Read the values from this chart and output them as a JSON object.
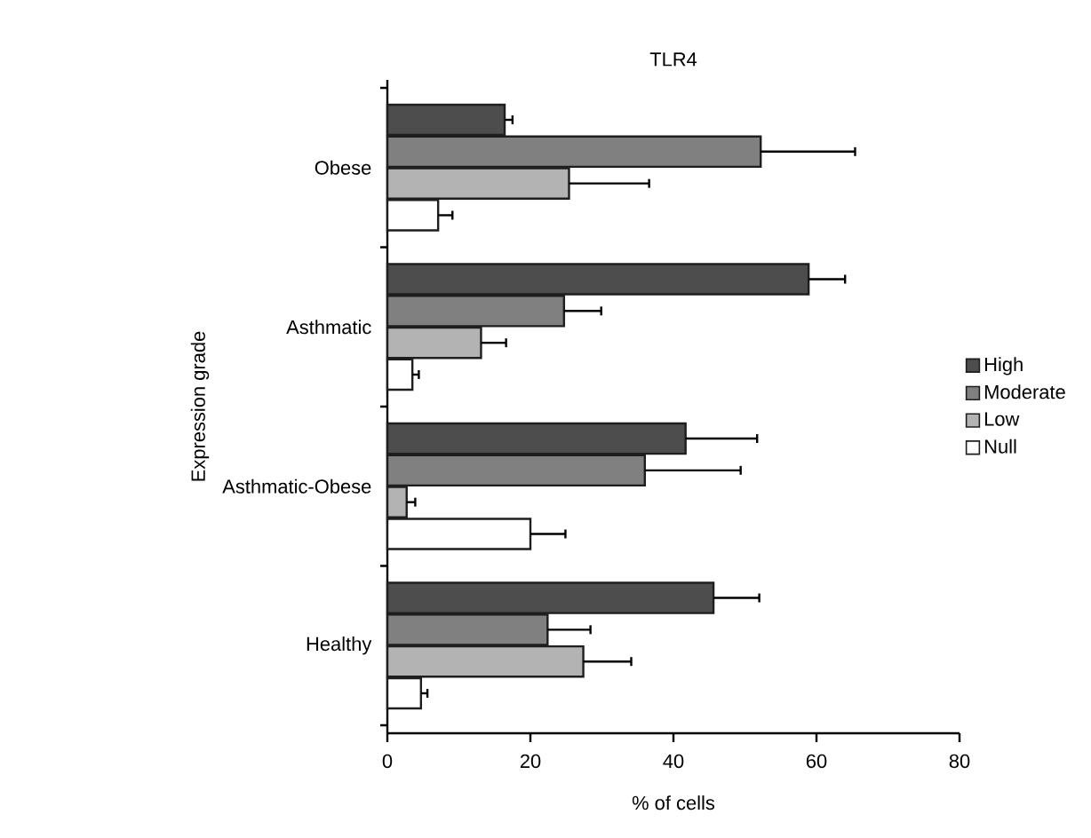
{
  "chart_data": {
    "type": "bar",
    "orientation": "horizontal",
    "title": "TLR4",
    "xlabel": "% of cells",
    "ylabel": "Expression grade",
    "categories": [
      "Obese",
      "Asthmatic",
      "Asthmatic-Obese",
      "Healthy"
    ],
    "series": [
      {
        "name": "High",
        "color": "#4d4d4d",
        "values": [
          16.4,
          58.9,
          41.7,
          45.6
        ],
        "errors": [
          [
            16.4,
            17.5
          ],
          [
            58.9,
            64.0
          ],
          [
            41.7,
            51.7
          ],
          [
            45.6,
            52.0
          ]
        ]
      },
      {
        "name": "Moderate",
        "color": "#808080",
        "values": [
          52.2,
          24.7,
          36.0,
          22.4
        ],
        "errors": [
          [
            52.2,
            65.4
          ],
          [
            24.7,
            29.9
          ],
          [
            36.0,
            49.4
          ],
          [
            22.4,
            28.4
          ]
        ]
      },
      {
        "name": "Low",
        "color": "#b3b3b3",
        "values": [
          25.4,
          13.1,
          2.7,
          27.4
        ],
        "errors": [
          [
            25.4,
            36.6
          ],
          [
            13.1,
            16.6
          ],
          [
            2.7,
            3.9
          ],
          [
            27.4,
            34.1
          ]
        ]
      },
      {
        "name": "Null",
        "color": "#ffffff",
        "values": [
          7.1,
          3.5,
          20.0,
          4.7
        ],
        "errors": [
          [
            7.1,
            9.1
          ],
          [
            3.5,
            4.4
          ],
          [
            20.0,
            24.9
          ],
          [
            4.7,
            5.6
          ]
        ]
      }
    ],
    "xlim": [
      0,
      80
    ],
    "xticks": [
      0,
      20,
      40,
      60,
      80
    ],
    "grid": false,
    "legend": "right"
  }
}
